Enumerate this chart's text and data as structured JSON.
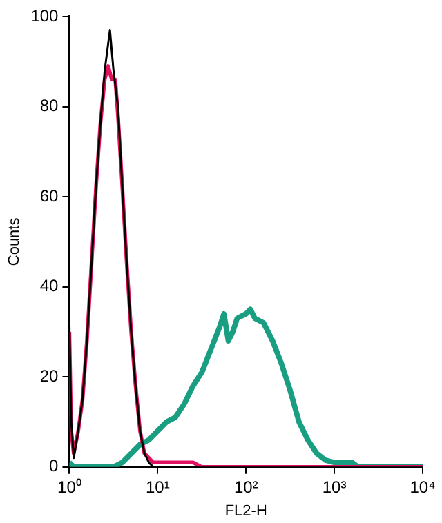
{
  "chart_data": {
    "type": "line",
    "xlabel": "FL2-H",
    "ylabel": "Counts",
    "log": "x",
    "grid": false,
    "legend": false,
    "marker": "none",
    "xlim": [
      1,
      10000
    ],
    "xticks": [
      {
        "value": 1,
        "label": "10⁰"
      },
      {
        "value": 10,
        "label": "10¹"
      },
      {
        "value": 100,
        "label": "10²"
      },
      {
        "value": 1000,
        "label": "10³"
      },
      {
        "value": 10000,
        "label": "10⁴"
      }
    ],
    "ylim": [
      0,
      100
    ],
    "yticks": [
      0,
      20,
      40,
      60,
      80,
      100
    ],
    "series": [
      {
        "color": "#000000",
        "x": [
          1,
          1.05,
          1.12,
          1.26,
          1.41,
          1.58,
          1.78,
          2.0,
          2.24,
          2.51,
          2.88,
          3.16,
          3.55,
          3.98,
          4.47,
          5.01,
          5.62,
          6.31,
          7.08,
          7.94,
          8.91,
          31.6,
          10000
        ],
        "values": [
          32,
          10,
          2,
          8,
          15,
          28,
          45,
          62,
          76,
          88,
          97,
          88,
          80,
          62,
          45,
          30,
          18,
          8,
          3,
          1,
          0,
          0,
          0
        ]
      },
      {
        "color": "#e0115f",
        "x": [
          1,
          1.05,
          1.12,
          1.26,
          1.41,
          1.58,
          1.78,
          2.0,
          2.24,
          2.51,
          2.75,
          3.02,
          3.31,
          3.55,
          3.98,
          4.47,
          5.01,
          5.62,
          6.31,
          7.08,
          7.94,
          8.91,
          10,
          15.8,
          25.1,
          31.6,
          10000
        ],
        "values": [
          30,
          8,
          3,
          8,
          15,
          28,
          45,
          62,
          76,
          86,
          89,
          86,
          86,
          78,
          62,
          45,
          30,
          18,
          8,
          3,
          2,
          1,
          1,
          1,
          1,
          0,
          0
        ]
      },
      {
        "color": "#1a9e82",
        "x": [
          1,
          1.12,
          3.16,
          3.98,
          5.01,
          6.31,
          7.94,
          10,
          12.6,
          15.8,
          20,
          25.1,
          31.6,
          39.8,
          50.1,
          56.2,
          63.1,
          70.8,
          79.4,
          100,
          112,
          126,
          158,
          200,
          251,
          316,
          398,
          501,
          631,
          794,
          1000,
          1585,
          1862,
          10000
        ],
        "values": [
          1,
          0,
          0,
          1,
          3,
          5,
          6,
          8,
          10,
          11,
          14,
          18,
          21,
          26,
          31,
          34,
          28,
          30,
          33,
          34,
          35,
          33,
          32,
          28,
          23,
          17,
          10,
          6,
          3,
          1.5,
          1,
          1,
          0,
          0
        ]
      }
    ]
  }
}
